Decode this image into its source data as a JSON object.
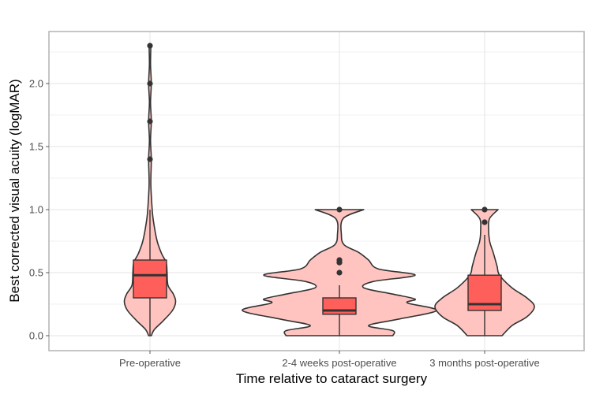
{
  "chart_data": {
    "type": "violin",
    "title": "",
    "xlabel": "Time relative to cataract surgery",
    "ylabel": "Best corrected visual acuity (logMAR)",
    "ylim": [
      -0.1,
      2.4
    ],
    "yticks": [
      0.0,
      0.5,
      1.0,
      1.5,
      2.0
    ],
    "ytick_labels": [
      "0.0",
      "0.5",
      "1.0",
      "1.5",
      "2.0"
    ],
    "grid": true,
    "legend": "none",
    "categories": [
      "Pre-operative",
      "2-4 weeks post-operative",
      "3 months post-operative"
    ],
    "colors": {
      "violin_fill": "#ffc4c0",
      "box_fill": "#ff5f5a",
      "outline": "#333333",
      "grid": "#e3e3e3",
      "panel_border": "#b3b3b3"
    },
    "groups": [
      {
        "name": "Pre-operative",
        "box": {
          "whisker_low": 0.0,
          "q1": 0.3,
          "median": 0.48,
          "q3": 0.6,
          "whisker_high": 1.0
        },
        "outliers": [
          1.4,
          1.7,
          2.0,
          2.3
        ],
        "violin_range": [
          0.0,
          2.3
        ],
        "density_profile": [
          [
            0.0,
            0.03
          ],
          [
            0.05,
            0.1
          ],
          [
            0.12,
            0.3
          ],
          [
            0.2,
            0.5
          ],
          [
            0.27,
            0.57
          ],
          [
            0.33,
            0.52
          ],
          [
            0.4,
            0.4
          ],
          [
            0.5,
            0.38
          ],
          [
            0.58,
            0.36
          ],
          [
            0.65,
            0.26
          ],
          [
            0.75,
            0.16
          ],
          [
            0.9,
            0.08
          ],
          [
            1.0,
            0.05
          ],
          [
            1.2,
            0.02
          ],
          [
            1.4,
            0.03
          ],
          [
            1.55,
            0.01
          ],
          [
            1.7,
            0.03
          ],
          [
            1.85,
            0.01
          ],
          [
            2.0,
            0.03
          ],
          [
            2.15,
            0.01
          ],
          [
            2.3,
            0.02
          ]
        ]
      },
      {
        "name": "2-4 weeks post-operative",
        "box": {
          "whisker_low": 0.0,
          "q1": 0.17,
          "median": 0.2,
          "q3": 0.3,
          "whisker_high": 0.4
        },
        "outliers": [
          0.5,
          0.58,
          0.6,
          1.0
        ],
        "violin_range": [
          0.0,
          1.0
        ],
        "density_profile": [
          [
            0.0,
            0.55
          ],
          [
            0.04,
            0.55
          ],
          [
            0.08,
            0.3
          ],
          [
            0.13,
            0.6
          ],
          [
            0.2,
            1.0
          ],
          [
            0.26,
            0.7
          ],
          [
            0.29,
            0.78
          ],
          [
            0.33,
            0.55
          ],
          [
            0.38,
            0.25
          ],
          [
            0.43,
            0.35
          ],
          [
            0.48,
            0.78
          ],
          [
            0.53,
            0.4
          ],
          [
            0.6,
            0.3
          ],
          [
            0.66,
            0.2
          ],
          [
            0.72,
            0.05
          ],
          [
            0.8,
            0.02
          ],
          [
            0.93,
            0.04
          ],
          [
            1.0,
            0.25
          ]
        ]
      },
      {
        "name": "3 months post-operative",
        "box": {
          "whisker_low": 0.0,
          "q1": 0.2,
          "median": 0.25,
          "q3": 0.48,
          "whisker_high": 0.8
        },
        "outliers": [
          0.9,
          1.0
        ],
        "violin_range": [
          0.0,
          1.0
        ],
        "density_profile": [
          [
            0.0,
            0.35
          ],
          [
            0.08,
            0.55
          ],
          [
            0.15,
            0.85
          ],
          [
            0.23,
            1.0
          ],
          [
            0.3,
            0.85
          ],
          [
            0.38,
            0.55
          ],
          [
            0.48,
            0.3
          ],
          [
            0.55,
            0.25
          ],
          [
            0.65,
            0.18
          ],
          [
            0.75,
            0.1
          ],
          [
            0.85,
            0.08
          ],
          [
            0.93,
            0.1
          ],
          [
            1.0,
            0.27
          ]
        ]
      }
    ]
  }
}
